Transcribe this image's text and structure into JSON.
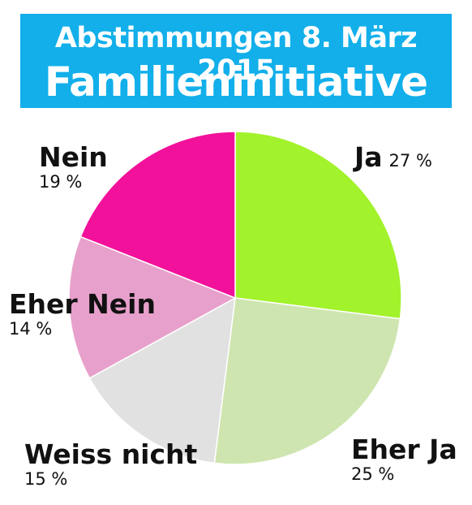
{
  "header": {
    "line1": "Abstimmungen 8. März 2015",
    "line2": "Familieninitiative",
    "color": "#12afea"
  },
  "chart_data": {
    "type": "pie",
    "title": "Familieninitiative",
    "subtitle": "Abstimmungen 8. März 2015",
    "slices": [
      {
        "label": "Ja",
        "value": 27,
        "pct_label": "27 %",
        "color": "#a2f22c"
      },
      {
        "label": "Eher Ja",
        "value": 25,
        "pct_label": "25 %",
        "color": "#cfe5b0"
      },
      {
        "label": "Weiss nicht",
        "value": 15,
        "pct_label": "15 %",
        "color": "#e1e1e1"
      },
      {
        "label": "Eher Nein",
        "value": 14,
        "pct_label": "14 %",
        "color": "#e7a0cb"
      },
      {
        "label": "Nein",
        "value": 19,
        "pct_label": "19 %",
        "color": "#f2119a"
      }
    ],
    "start": "12 o'clock",
    "direction": "clockwise"
  }
}
